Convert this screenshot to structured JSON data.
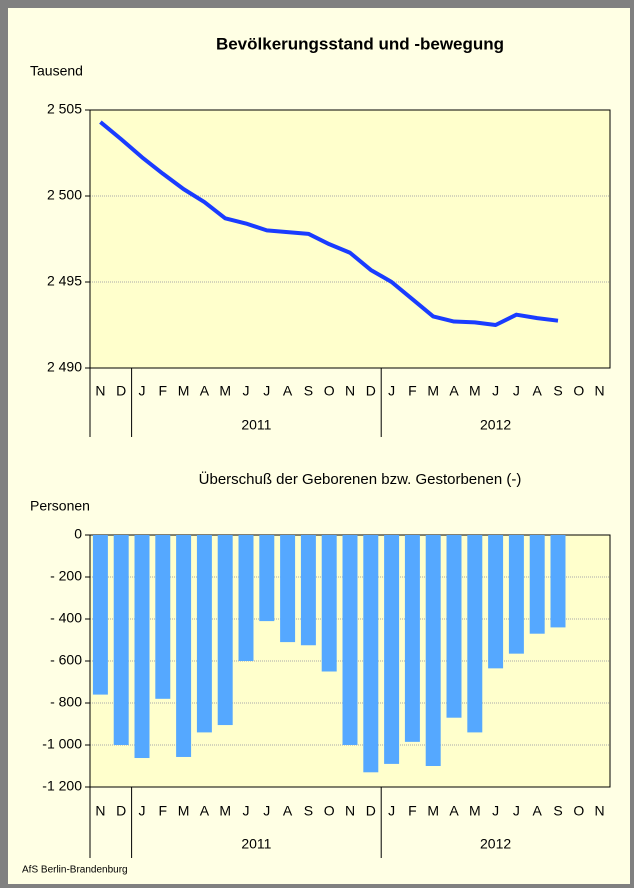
{
  "chart_data": [
    {
      "type": "line",
      "title": "Bevölkerungsstand und -bewegung",
      "y_label": "Tausend",
      "categories": [
        "N",
        "D",
        "J",
        "F",
        "M",
        "A",
        "M",
        "J",
        "J",
        "A",
        "S",
        "O",
        "N",
        "D",
        "J",
        "F",
        "M",
        "A",
        "M",
        "J",
        "J",
        "A",
        "S",
        "O",
        "N"
      ],
      "x_groups": [
        {
          "label": "2011",
          "count": 12
        },
        {
          "label": "2012",
          "count": 11
        }
      ],
      "series": [
        {
          "name": "Bevölkerungsstand",
          "color": "#1a3cff",
          "values": [
            2504.3,
            2503.3,
            2502.25,
            2501.3,
            2500.4,
            2499.65,
            2498.7,
            2498.4,
            2498.0,
            2497.9,
            2497.8,
            2497.2,
            2496.7,
            2495.7,
            2495.0,
            2494.0,
            2493.0,
            2492.7,
            2492.65,
            2492.5,
            2493.1,
            2492.9,
            2492.75,
            null,
            null
          ]
        }
      ],
      "ylim": [
        2490,
        2505
      ],
      "yticks": [
        {
          "value": 2490,
          "label": "2 490"
        },
        {
          "value": 2495,
          "label": "2 495"
        },
        {
          "value": 2500,
          "label": "2 500"
        },
        {
          "value": 2505,
          "label": "2 505"
        }
      ],
      "grid": true
    },
    {
      "type": "bar",
      "title": "Überschuß der Geborenen bzw. Gestorbenen (-)",
      "y_label": "Personen",
      "categories": [
        "N",
        "D",
        "J",
        "F",
        "M",
        "A",
        "M",
        "J",
        "J",
        "A",
        "S",
        "O",
        "N",
        "D",
        "J",
        "F",
        "M",
        "A",
        "M",
        "J",
        "J",
        "A",
        "S",
        "O",
        "N"
      ],
      "x_groups": [
        {
          "label": "2011",
          "count": 12
        },
        {
          "label": "2012",
          "count": 11
        }
      ],
      "series": [
        {
          "name": "Überschuß",
          "color": "#55a8ff",
          "values": [
            -760,
            -1000,
            -1062,
            -780,
            -1057,
            -940,
            -905,
            -600,
            -410,
            -510,
            -525,
            -650,
            -1000,
            -1130,
            -1090,
            -985,
            -1100,
            -870,
            -940,
            -635,
            -565,
            -470,
            -440,
            null,
            null
          ]
        }
      ],
      "ylim": [
        -1200,
        0
      ],
      "yticks": [
        {
          "value": -1200,
          "label": "-1 200"
        },
        {
          "value": -1000,
          "label": "-1 000"
        },
        {
          "value": -800,
          "label": "- 800"
        },
        {
          "value": -600,
          "label": "- 600"
        },
        {
          "value": -400,
          "label": "- 400"
        },
        {
          "value": -200,
          "label": "- 200"
        },
        0
      ],
      "grid": true
    }
  ],
  "footer": "AfS Berlin-Brandenburg"
}
